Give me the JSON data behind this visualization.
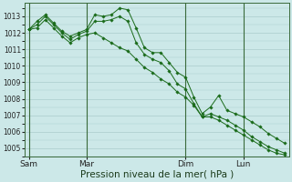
{
  "bg_color": "#cce8e8",
  "plot_bg_color": "#cce8e8",
  "grid_color": "#aacccc",
  "line_color": "#1a6b1a",
  "marker_color": "#1a6b1a",
  "xlabel": "Pression niveau de la mer( hPa )",
  "xlabel_fontsize": 7.5,
  "ylim": [
    1004.5,
    1013.8
  ],
  "yticks": [
    1005,
    1006,
    1007,
    1008,
    1009,
    1010,
    1011,
    1012,
    1013
  ],
  "xtick_labels": [
    "Sam",
    "Mar",
    "Dim",
    "Lun"
  ],
  "xtick_positions": [
    0,
    7,
    19,
    26
  ],
  "vline_positions": [
    0,
    7,
    19,
    26
  ],
  "series1_x": [
    0,
    1,
    2,
    3,
    4,
    5,
    6,
    7,
    8,
    9,
    10,
    11,
    12,
    13,
    14,
    15,
    16,
    17,
    18,
    19,
    20,
    21,
    22,
    23,
    24,
    25,
    26,
    27,
    28,
    29,
    30,
    31
  ],
  "series1": [
    1012.2,
    1012.7,
    1013.1,
    1012.6,
    1012.1,
    1011.8,
    1012.0,
    1012.2,
    1013.1,
    1013.0,
    1013.1,
    1013.5,
    1013.4,
    1012.3,
    1011.1,
    1010.8,
    1010.8,
    1010.2,
    1009.6,
    1009.3,
    1008.1,
    1007.1,
    1007.5,
    1008.2,
    1007.3,
    1007.1,
    1006.9,
    1006.6,
    1006.3,
    1005.9,
    1005.6,
    1005.3
  ],
  "series2_x": [
    0,
    1,
    2,
    3,
    4,
    5,
    6,
    7,
    8,
    9,
    10,
    11,
    12,
    13,
    14,
    15,
    16,
    17,
    18,
    19,
    20,
    21,
    22,
    23,
    24,
    25,
    26,
    27,
    28,
    29,
    30,
    31
  ],
  "series2": [
    1012.2,
    1012.5,
    1013.0,
    1012.5,
    1012.0,
    1011.6,
    1011.9,
    1012.1,
    1012.7,
    1012.7,
    1012.8,
    1013.0,
    1012.7,
    1011.4,
    1010.7,
    1010.4,
    1010.2,
    1009.7,
    1008.9,
    1008.6,
    1007.7,
    1006.9,
    1007.1,
    1006.9,
    1006.7,
    1006.4,
    1006.1,
    1005.7,
    1005.4,
    1005.1,
    1004.9,
    1004.7
  ],
  "series3_x": [
    0,
    1,
    2,
    3,
    4,
    5,
    6,
    7,
    8,
    9,
    10,
    11,
    12,
    13,
    14,
    15,
    16,
    17,
    18,
    19,
    20,
    21,
    22,
    23,
    24,
    25,
    26,
    27,
    28,
    29,
    30,
    31
  ],
  "series3": [
    1012.2,
    1012.3,
    1012.8,
    1012.3,
    1011.8,
    1011.4,
    1011.7,
    1011.9,
    1012.0,
    1011.7,
    1011.4,
    1011.1,
    1010.9,
    1010.4,
    1009.9,
    1009.6,
    1009.2,
    1008.9,
    1008.4,
    1008.1,
    1007.6,
    1006.9,
    1006.9,
    1006.7,
    1006.4,
    1006.1,
    1005.8,
    1005.5,
    1005.2,
    1004.9,
    1004.7,
    1004.6
  ],
  "n_points": 32,
  "lw": 0.7,
  "ms": 1.8
}
